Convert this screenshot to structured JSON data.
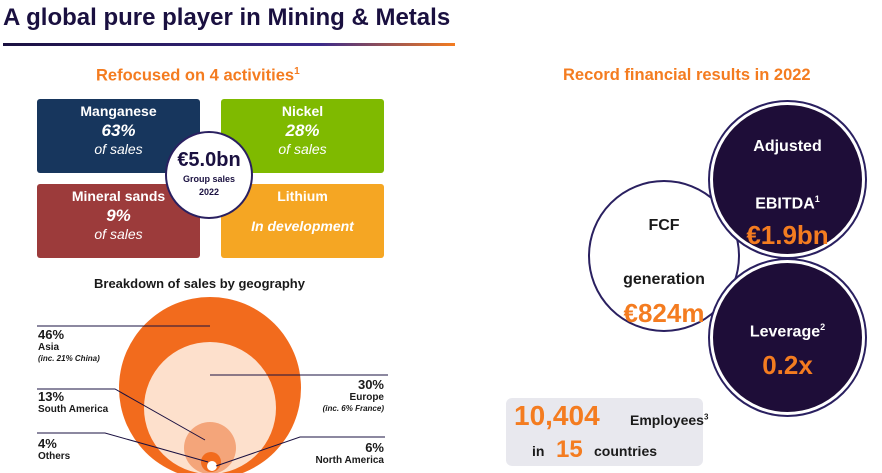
{
  "title": "A global pure player in Mining & Metals",
  "left_section": {
    "heading": "Refocused on 4 activities",
    "heading_footnote": "1",
    "tiles": [
      {
        "name": "Manganese",
        "pct": "63%",
        "sub": "of sales",
        "color": "#17365d"
      },
      {
        "name": "Nickel",
        "pct": "28%",
        "sub": "of sales",
        "color": "#7fba00"
      },
      {
        "name": "Mineral sands",
        "pct": "9%",
        "sub": "of sales",
        "color": "#9c3b3b"
      },
      {
        "name": "Lithium",
        "status": "In development",
        "color": "#f5a623"
      }
    ],
    "center": {
      "value": "€5.0bn",
      "label_1": "Group sales",
      "label_2": "2022"
    }
  },
  "geography": {
    "heading": "Breakdown of sales by geography",
    "regions": [
      {
        "pct": "46%",
        "region": "Asia",
        "note": "(inc. 21% China)",
        "value": 46
      },
      {
        "pct": "30%",
        "region": "Europe",
        "note": "(inc. 6% France)",
        "value": 30
      },
      {
        "pct": "13%",
        "region": "South America",
        "value": 13
      },
      {
        "pct": "6%",
        "region": "North America",
        "value": 6
      },
      {
        "pct": "4%",
        "region": "Others",
        "value": 4
      }
    ]
  },
  "right_section": {
    "heading": "Record financial results in 2022",
    "fcf": {
      "label_1": "FCF",
      "label_2": "generation",
      "value": "€824m"
    },
    "ebitda": {
      "label_1": "Adjusted",
      "label_2": "EBITDA",
      "footnote": "1",
      "value": "€1.9bn"
    },
    "leverage": {
      "label": "Leverage",
      "footnote": "2",
      "value": "0.2x"
    },
    "employees": {
      "count": "10,404",
      "label": "Employees",
      "footnote": "3",
      "prefix": "in",
      "countries": "15",
      "suffix": "countries"
    }
  },
  "colors": {
    "accent": "#f47c20",
    "navy": "#1a1040",
    "dark_purple": "#1e0d38"
  }
}
